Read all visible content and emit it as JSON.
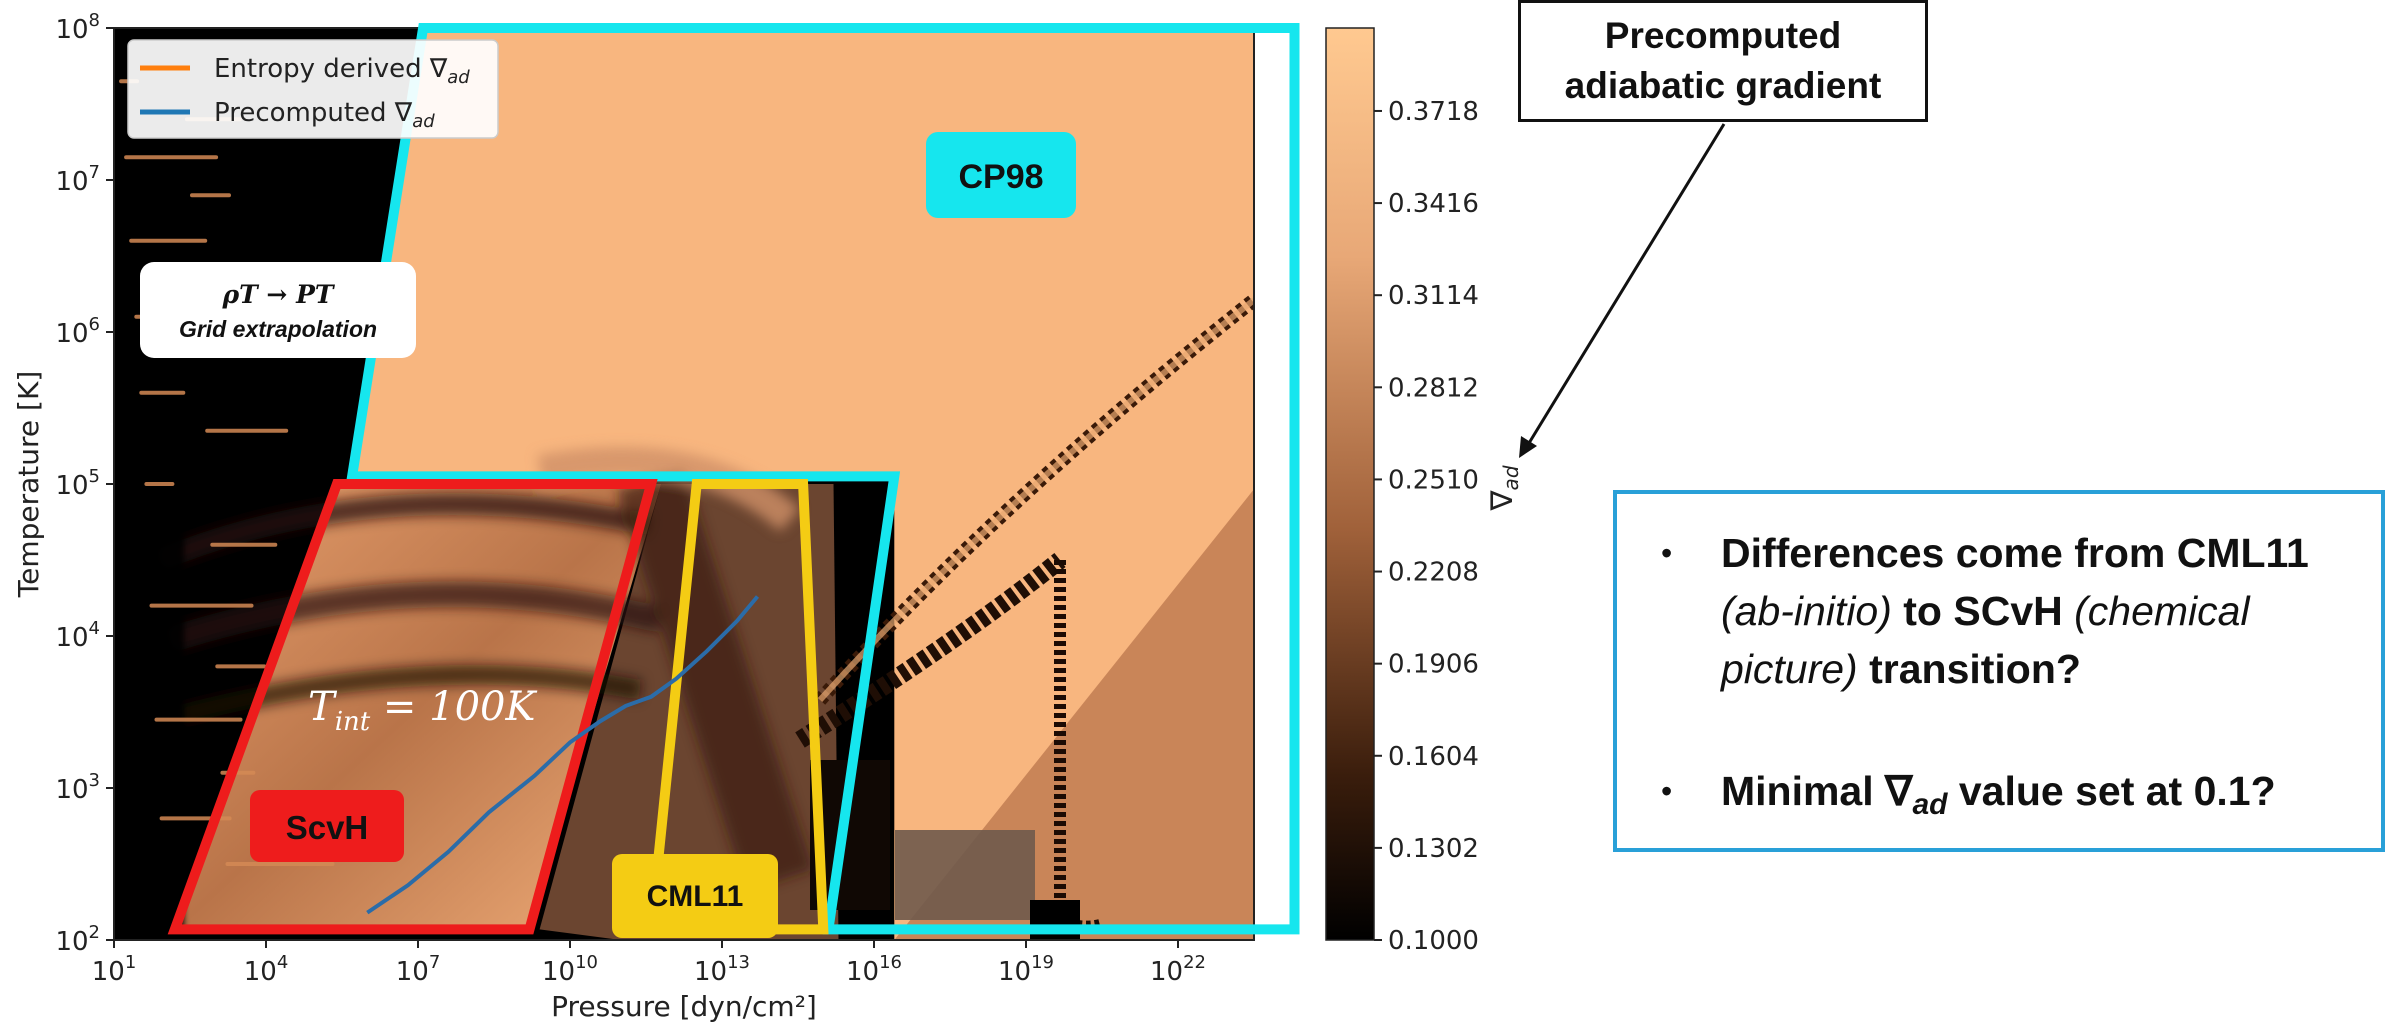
{
  "chart_data": {
    "type": "heatmap",
    "xlabel": "Pressure [dyn/cm²]",
    "ylabel": "Temperature [K]",
    "x_scale": "log",
    "y_scale": "log",
    "xlim_exp": [
      1,
      23.5
    ],
    "ylim_exp": [
      2,
      8
    ],
    "x_ticks": [
      {
        "exp": 1,
        "label": "10",
        "sup": "1"
      },
      {
        "exp": 4,
        "label": "10",
        "sup": "4"
      },
      {
        "exp": 7,
        "label": "10",
        "sup": "7"
      },
      {
        "exp": 10,
        "label": "10",
        "sup": "10"
      },
      {
        "exp": 13,
        "label": "10",
        "sup": "13"
      },
      {
        "exp": 16,
        "label": "10",
        "sup": "16"
      },
      {
        "exp": 19,
        "label": "10",
        "sup": "19"
      },
      {
        "exp": 22,
        "label": "10",
        "sup": "22"
      }
    ],
    "y_ticks": [
      {
        "exp": 2,
        "label": "10",
        "sup": "2"
      },
      {
        "exp": 3,
        "label": "10",
        "sup": "3"
      },
      {
        "exp": 4,
        "label": "10",
        "sup": "4"
      },
      {
        "exp": 5,
        "label": "10",
        "sup": "5"
      },
      {
        "exp": 6,
        "label": "10",
        "sup": "6"
      },
      {
        "exp": 7,
        "label": "10",
        "sup": "7"
      },
      {
        "exp": 8,
        "label": "10",
        "sup": "8"
      }
    ],
    "colorbar": {
      "label": "∇ad",
      "min": 0.1,
      "max": 0.399,
      "ticks": [
        "0.1000",
        "0.1302",
        "0.1604",
        "0.1906",
        "0.2208",
        "0.2510",
        "0.2812",
        "0.3114",
        "0.3416",
        "0.3718"
      ],
      "colors": [
        "#000000",
        "#5a3014",
        "#b06a3c",
        "#f6b27b",
        "#ffc890"
      ]
    },
    "legend": {
      "placement": "top-left",
      "entries": [
        {
          "label": "Entropy derived ∇ad",
          "color": "#ff7f0e"
        },
        {
          "label": "Precomputed ∇ad",
          "color": "#1f77b4"
        }
      ]
    },
    "series": [
      {
        "name": "Precomputed ∇ad",
        "color": "#2b6ca8",
        "logP": [
          6.0,
          6.8,
          7.6,
          8.4,
          9.3,
          10.0,
          10.6,
          11.1,
          11.6,
          12.1,
          12.7,
          13.3,
          13.7
        ],
        "logT": [
          2.18,
          2.36,
          2.58,
          2.84,
          3.08,
          3.3,
          3.44,
          3.54,
          3.6,
          3.72,
          3.9,
          4.1,
          4.26
        ]
      }
    ],
    "regions": [
      {
        "name": "CP98",
        "color": "#16e6ee",
        "logP": [
          7.1,
          24.3,
          24.3,
          15.1,
          15.1,
          16.4,
          16.4,
          7.1
        ],
        "logT": [
          8.0,
          8.0,
          2.07,
          2.07,
          3.0,
          3.0,
          5.05,
          5.05
        ],
        "outline_logP": [
          7.1,
          24.3,
          24.3,
          15.1,
          16.4,
          16.4,
          5.7
        ],
        "outline_logT": [
          8.0,
          8.0,
          2.07,
          2.07,
          5.05,
          5.05,
          5.05
        ]
      },
      {
        "name": "ScvH",
        "color": "#ee1c1c",
        "logP": [
          2.2,
          5.4,
          11.6,
          9.2
        ],
        "logT": [
          2.07,
          5.0,
          5.0,
          2.07
        ]
      },
      {
        "name": "CML11",
        "color": "#f4cc14",
        "logP": [
          11.6,
          12.5,
          14.6,
          15.0,
          11.0
        ],
        "logT": [
          2.07,
          5.0,
          5.0,
          2.07,
          2.07
        ]
      }
    ],
    "annotations": {
      "region_labels": [
        {
          "text": "CP98",
          "bg": "#16e6ee"
        },
        {
          "text": "ScvH",
          "bg": "#ee1c1c"
        },
        {
          "text": "CML11",
          "bg": "#f4cc14"
        }
      ],
      "curve_label": "T",
      "curve_label_sub": "int",
      "curve_label_rest": " = 100K",
      "grid_box_line1": "ρT → PT",
      "grid_box_line2": "Grid extrapolation"
    }
  },
  "callout": {
    "line1": "Precomputed",
    "line2": "adiabatic gradient"
  },
  "notes": [
    {
      "bullet": "•",
      "parts": [
        {
          "text": "Differences come from CML11 ",
          "style": "b"
        },
        {
          "text": "(ab-initio)",
          "style": "i"
        },
        {
          "text": " to SCvH ",
          "style": "b"
        },
        {
          "text": "(chemical picture)",
          "style": "i"
        },
        {
          "text": " transition?",
          "style": "b"
        }
      ]
    },
    {
      "bullet": "•",
      "parts": [
        {
          "text": "Minimal ",
          "style": "b"
        },
        {
          "text": "∇",
          "style": "b"
        },
        {
          "text": "ad",
          "style": "b sub"
        },
        {
          "text": " value set at 0.1?",
          "style": "b"
        }
      ]
    }
  ]
}
